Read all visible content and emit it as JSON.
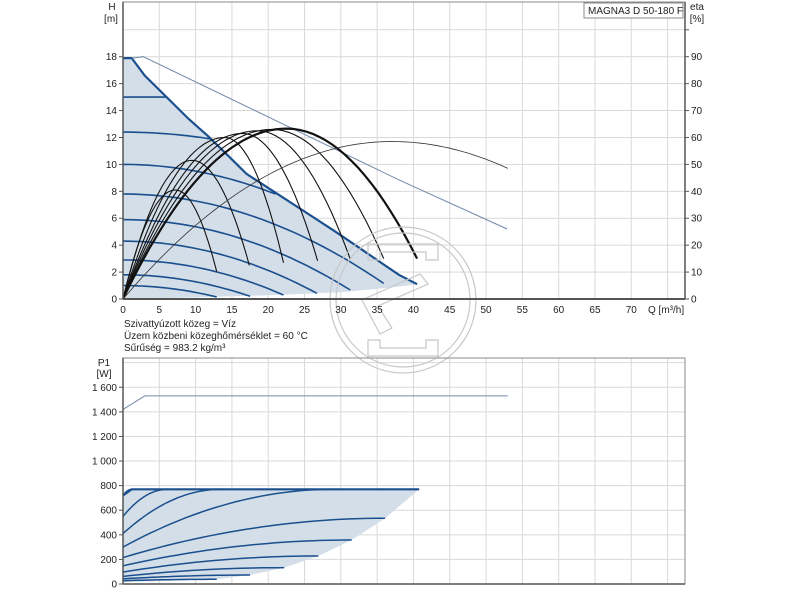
{
  "product_label": "MAGNA3 D 50-180 F",
  "info_lines": [
    "Szivattyúzott közeg = Víz",
    "Üzem közbeni közeghőmérséklet = 60 °C",
    "Sűrűség = 983.2 kg/m³"
  ],
  "colors": {
    "envelope_fill": "#d3dee8",
    "speed_curve": "#1b4f8e",
    "thin_limit": "#7189a8",
    "efficiency": "#111111",
    "grid": "#d9d9d9",
    "axis": "#555555"
  },
  "chart_data": [
    {
      "type": "line",
      "xlabel": "Q [m³/h]",
      "ylabel": "H",
      "ylabel_unit": "[m]",
      "y2label": "eta",
      "y2label_unit": "[%]",
      "xlim": [
        0,
        77.4
      ],
      "ylim": [
        0,
        22
      ],
      "y2lim": [
        0,
        110
      ],
      "grid": true,
      "x_ticks": [
        "0",
        "5",
        "10",
        "15",
        "20",
        "25",
        "30",
        "35",
        "40",
        "45",
        "50",
        "55",
        "60",
        "65",
        "70"
      ],
      "y_ticks": [
        "0",
        "2",
        "4",
        "6",
        "8",
        "10",
        "12",
        "14",
        "16",
        "18"
      ],
      "y2_ticks": [
        "0",
        "10",
        "20",
        "30",
        "40",
        "50",
        "60",
        "70",
        "80",
        "90"
      ],
      "max_curve": [
        [
          0,
          17.9
        ],
        [
          1.2,
          17.9
        ],
        [
          3,
          16.6
        ],
        [
          6,
          15.0
        ],
        [
          9,
          13.4
        ],
        [
          11.7,
          12.1
        ],
        [
          14,
          10.9
        ],
        [
          17,
          9.3
        ],
        [
          21,
          7.9
        ],
        [
          25,
          6.5
        ],
        [
          29,
          5.1
        ],
        [
          32,
          4.0
        ],
        [
          35,
          2.9
        ],
        [
          38,
          1.8
        ],
        [
          40.5,
          1.1
        ]
      ],
      "lower_boundary": [
        [
          0,
          0
        ],
        [
          10,
          0.12
        ],
        [
          20,
          0.28
        ],
        [
          30,
          0.5
        ],
        [
          36,
          0.8
        ],
        [
          40.5,
          1.1
        ]
      ],
      "speed_curves": [
        {
          "h0": 15.0,
          "end": [
            6,
            15.0
          ]
        },
        {
          "h0": 12.4,
          "end": [
            12,
            11.9
          ]
        },
        {
          "h0": 10.0,
          "end": [
            21,
            7.8
          ]
        },
        {
          "h0": 7.8,
          "end": [
            35.9,
            1.16
          ]
        },
        {
          "h0": 5.9,
          "end": [
            31.3,
            0.67
          ]
        },
        {
          "h0": 4.3,
          "end": [
            26.7,
            0.42
          ]
        },
        {
          "h0": 2.9,
          "end": [
            22.1,
            0.3
          ]
        },
        {
          "h0": 1.8,
          "end": [
            17.5,
            0.2
          ]
        },
        {
          "h0": 1.0,
          "end": [
            12.9,
            0.15
          ]
        }
      ],
      "limit_line": [
        [
          1.2,
          17.9
        ],
        [
          2.8,
          18.0
        ],
        [
          38.2,
          8.8
        ],
        [
          52.9,
          5.2
        ]
      ],
      "efficiency_curves_pct": [
        {
          "peak": [
            7.2,
            40.5
          ],
          "end": [
            12.9,
            10.2
          ]
        },
        {
          "peak": [
            9.5,
            51.5
          ],
          "end": [
            17.4,
            12.5
          ]
        },
        {
          "peak": [
            14,
            60
          ],
          "end": [
            22.1,
            13.5
          ]
        },
        {
          "peak": [
            16.5,
            61.5
          ],
          "end": [
            26.8,
            14.2
          ]
        },
        {
          "peak": [
            18.5,
            62.5
          ],
          "end": [
            31.3,
            14.8
          ]
        },
        {
          "peak": [
            20.5,
            63
          ],
          "end": [
            35.9,
            15
          ]
        },
        {
          "peak": [
            22.5,
            63.3
          ],
          "end": [
            40.5,
            15
          ],
          "bold": true
        }
      ],
      "efficiency_max_pct": {
        "peak": [
          37,
          58.5
        ],
        "end": [
          53,
          48.5
        ]
      }
    },
    {
      "type": "line",
      "xlabel": "",
      "ylabel": "P1",
      "ylabel_unit": "[W]",
      "xlim": [
        0,
        77.4
      ],
      "ylim": [
        0,
        1838
      ],
      "grid": true,
      "y_ticks": [
        "0",
        "200",
        "400",
        "600",
        "800",
        "1 000",
        "1 200",
        "1 400",
        "1 600"
      ],
      "max_power_line": [
        [
          0,
          1420
        ],
        [
          3,
          1530
        ],
        [
          53,
          1530
        ]
      ],
      "envelope_top": [
        [
          0,
          720
        ],
        [
          1.2,
          770
        ],
        [
          40.8,
          770
        ]
      ],
      "envelope_boundary": [
        [
          40.8,
          770
        ],
        [
          36.1,
          535
        ],
        [
          31.5,
          358
        ],
        [
          26.9,
          228
        ],
        [
          22.2,
          133
        ],
        [
          17.5,
          73
        ],
        [
          12.9,
          38
        ],
        [
          0,
          15
        ]
      ],
      "speed_curves": [
        {
          "p0": 720,
          "end": [
            1.2,
            770
          ]
        },
        {
          "p0": 550,
          "end": [
            6.1,
            770
          ]
        },
        {
          "p0": 410,
          "end": [
            13.4,
            770
          ]
        },
        {
          "p0": 300,
          "end": [
            29,
            770
          ]
        },
        {
          "p0": 215,
          "end": [
            36.1,
            535
          ]
        },
        {
          "p0": 148,
          "end": [
            31.5,
            358
          ]
        },
        {
          "p0": 97,
          "end": [
            26.9,
            228
          ]
        },
        {
          "p0": 62,
          "end": [
            22.2,
            133
          ]
        },
        {
          "p0": 42,
          "end": [
            17.5,
            73
          ]
        },
        {
          "p0": 27,
          "end": [
            12.9,
            38
          ]
        }
      ]
    }
  ]
}
